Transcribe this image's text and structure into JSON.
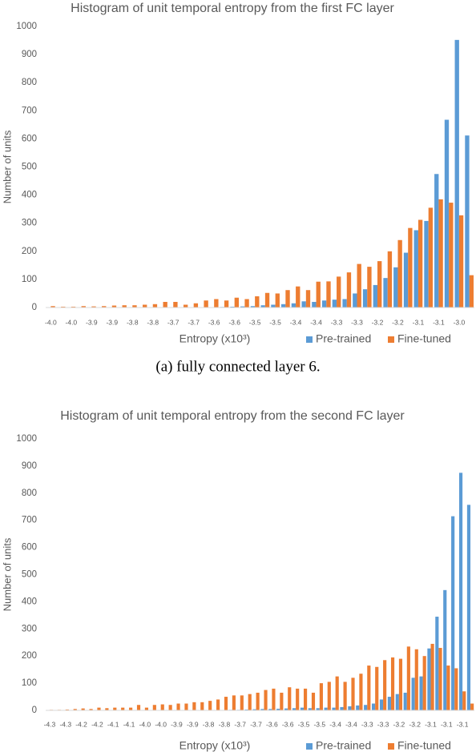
{
  "chart_data": [
    {
      "type": "bar",
      "title": "Histogram of unit temporal entropy from the first FC layer",
      "x_label": "Entropy (x10³)",
      "y_label": "Number of units",
      "categories": [
        "-4.0",
        null,
        "-4.0",
        null,
        "-3.9",
        null,
        "-3.9",
        null,
        "-3.8",
        null,
        "-3.8",
        null,
        "-3.7",
        null,
        "-3.7",
        null,
        "-3.6",
        null,
        "-3.6",
        null,
        "-3.5",
        null,
        "-3.5",
        null,
        "-3.4",
        null,
        "-3.4",
        null,
        "-3.3",
        null,
        "-3.3",
        null,
        "-3.2",
        null,
        "-3.2",
        null,
        "-3.1",
        null,
        "-3.1",
        null,
        "-3.0",
        null
      ],
      "series": [
        {
          "name": "Pre-trained",
          "color": "#5b9bd5",
          "values": [
            0,
            0,
            0,
            0,
            0,
            0,
            0,
            0,
            0,
            0,
            0,
            0,
            0,
            0,
            0,
            0,
            1,
            2,
            3,
            4,
            5,
            8,
            10,
            12,
            15,
            22,
            20,
            25,
            28,
            30,
            50,
            65,
            80,
            105,
            143,
            195,
            275,
            308,
            475,
            668,
            952,
            612
          ]
        },
        {
          "name": "Fine-tuned",
          "color": "#ed7d31",
          "values": [
            5,
            3,
            3,
            5,
            4,
            5,
            7,
            8,
            8,
            10,
            12,
            20,
            20,
            10,
            15,
            25,
            30,
            25,
            35,
            30,
            40,
            52,
            50,
            62,
            75,
            62,
            92,
            93,
            110,
            125,
            155,
            145,
            165,
            200,
            240,
            283,
            312,
            355,
            385,
            373,
            328,
            115
          ]
        }
      ],
      "ylim": [
        0,
        1000
      ],
      "yticks": [
        0,
        100,
        200,
        300,
        400,
        500,
        600,
        700,
        800,
        900,
        1000
      ],
      "grid": false,
      "legend": "bottom"
    },
    {
      "type": "bar",
      "title": "Histogram of unit temporal entropy from the second FC layer",
      "x_label": "Entropy (x10³)",
      "y_label": "Number of units",
      "categories": [
        "-4.3",
        null,
        "-4.3",
        null,
        "-4.2",
        null,
        "-4.2",
        null,
        "-4.1",
        null,
        "-4.1",
        null,
        "-4.0",
        null,
        "-4.0",
        null,
        "-3.9",
        null,
        "-3.9",
        null,
        "-3.8",
        null,
        "-3.8",
        null,
        "-3.7",
        null,
        "-3.7",
        null,
        "-3.6",
        null,
        "-3.6",
        null,
        "-3.5",
        null,
        "-3.5",
        null,
        "-3.4",
        null,
        "-3.4",
        null,
        "-3.3",
        null,
        "-3.3",
        null,
        "-3.2",
        null,
        "-3.2",
        null,
        "-3.1",
        null,
        "-3.1",
        null,
        "-3.1",
        null
      ],
      "series": [
        {
          "name": "Pre-trained",
          "color": "#5b9bd5",
          "values": [
            0,
            0,
            0,
            0,
            0,
            0,
            0,
            0,
            0,
            0,
            0,
            0,
            0,
            0,
            0,
            0,
            0,
            0,
            0,
            0,
            0,
            0,
            1,
            2,
            2,
            3,
            4,
            5,
            5,
            6,
            7,
            8,
            10,
            8,
            8,
            10,
            10,
            12,
            15,
            18,
            20,
            25,
            40,
            50,
            60,
            65,
            120,
            125,
            228,
            345,
            443,
            715,
            875,
            757
          ]
        },
        {
          "name": "Fine-tuned",
          "color": "#ed7d31",
          "values": [
            2,
            2,
            3,
            5,
            7,
            5,
            10,
            8,
            10,
            10,
            10,
            20,
            10,
            20,
            22,
            20,
            25,
            25,
            30,
            30,
            35,
            40,
            50,
            55,
            55,
            60,
            65,
            75,
            80,
            65,
            85,
            80,
            80,
            65,
            100,
            105,
            125,
            105,
            120,
            135,
            165,
            160,
            185,
            195,
            190,
            235,
            225,
            200,
            245,
            230,
            165,
            155,
            70,
            25
          ]
        }
      ],
      "ylim": [
        0,
        1000
      ],
      "yticks": [
        0,
        100,
        200,
        300,
        400,
        500,
        600,
        700,
        800,
        900,
        1000
      ],
      "grid": false,
      "legend": "bottom"
    }
  ],
  "caption": "(a) fully connected layer 6."
}
